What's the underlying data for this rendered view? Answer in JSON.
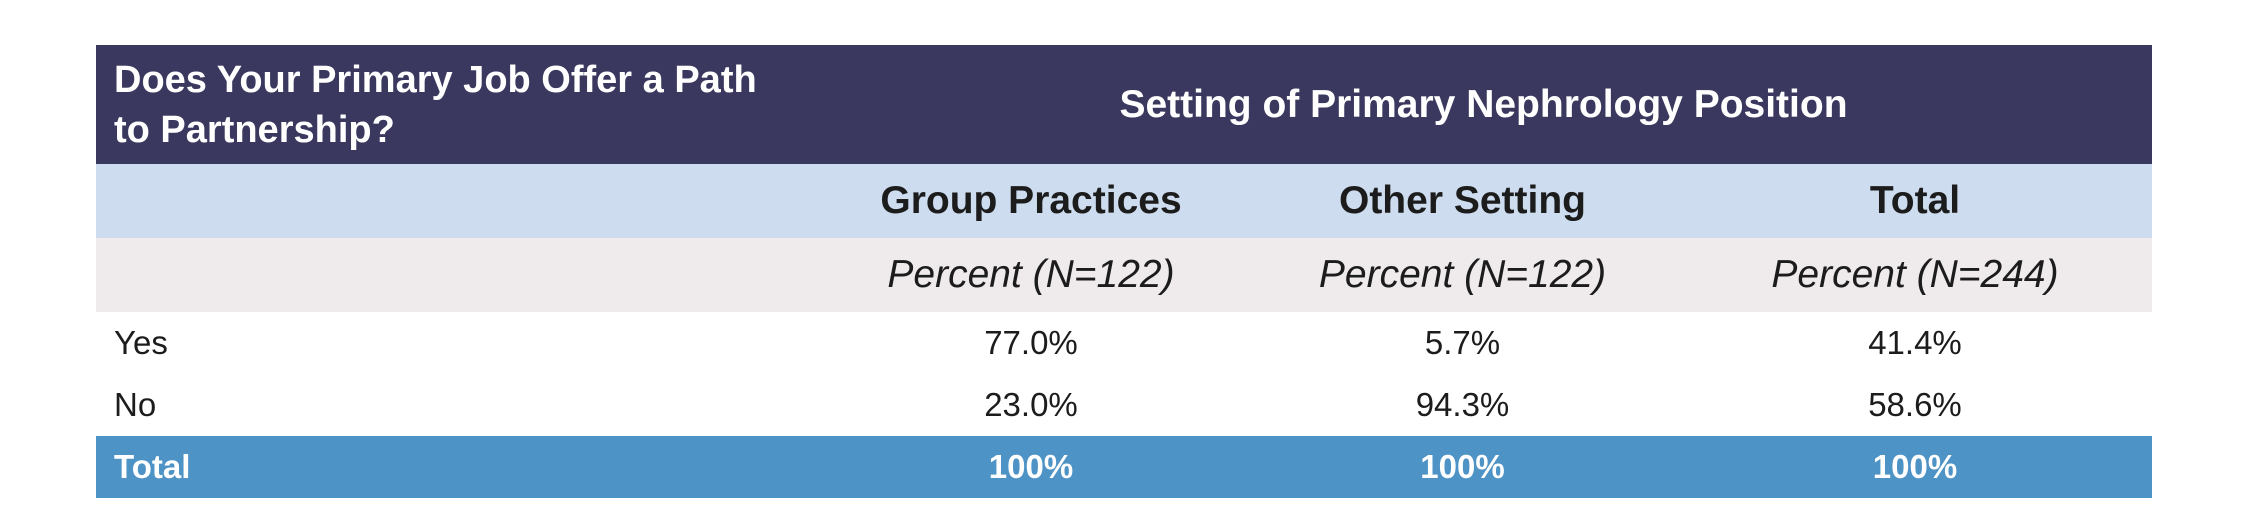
{
  "table": {
    "question": "Does Your Primary Job Offer a Path to Partnership?",
    "setting_header": "Setting of Primary Nephrology Position",
    "columns": [
      "Group Practices",
      "Other Setting",
      "Total"
    ],
    "subheaders": [
      "Percent (N=122)",
      "Percent (N=122)",
      "Percent (N=244)"
    ],
    "rows": [
      {
        "label": "Yes",
        "values": [
          "77.0%",
          "5.7%",
          "41.4%"
        ]
      },
      {
        "label": "No",
        "values": [
          "23.0%",
          "94.3%",
          "58.6%"
        ]
      }
    ],
    "total": {
      "label": "Total",
      "values": [
        "100%",
        "100%",
        "100%"
      ]
    }
  },
  "colors": {
    "title_bg": "#3a385e",
    "setting_bg": "#cddcee",
    "subheader_bg": "#efeaec",
    "total_bg": "#4e93c6"
  }
}
